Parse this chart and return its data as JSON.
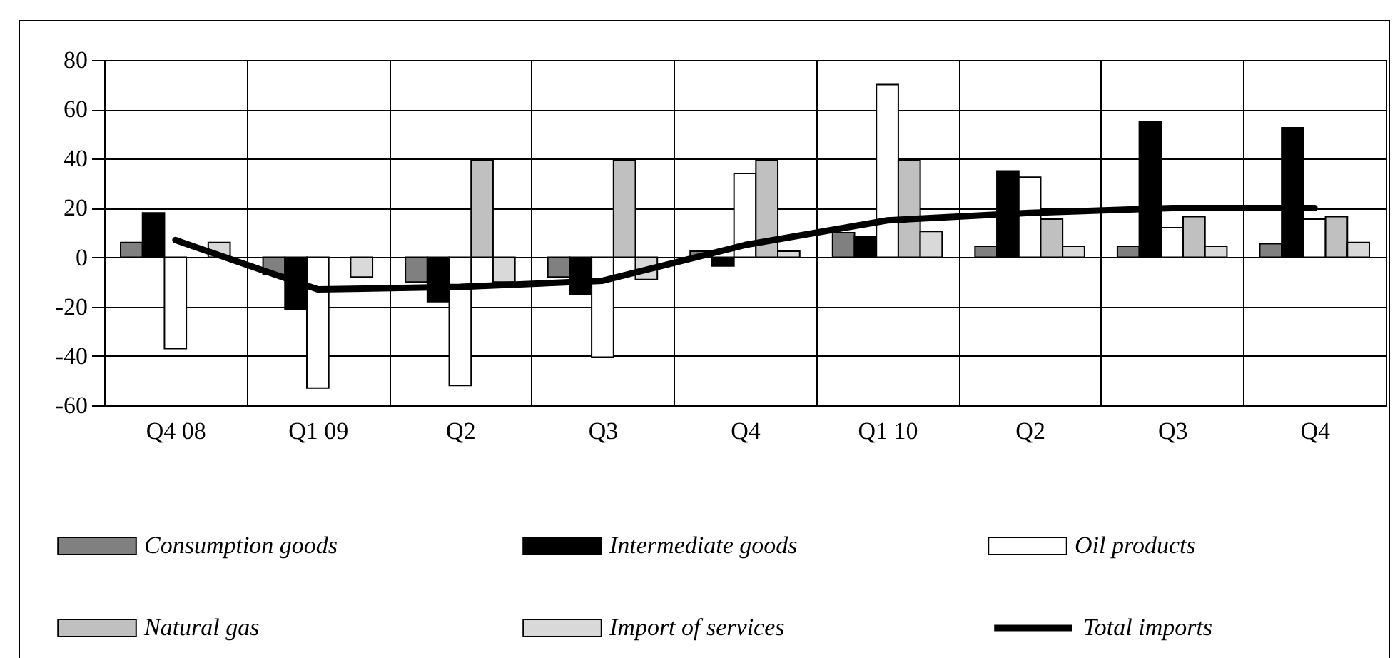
{
  "chart_data": {
    "type": "bar",
    "categories": [
      "Q4 08",
      "Q1 09",
      "Q2",
      "Q3",
      "Q4",
      "Q1 10",
      "Q2",
      "Q3",
      "Q4"
    ],
    "series": [
      {
        "name": "Consumption goods",
        "color": "#808080",
        "values": [
          6,
          -7,
          -10,
          -8,
          2.5,
          10,
          4.5,
          4.5,
          5.5
        ]
      },
      {
        "name": "Intermediate goods",
        "color": "#000000",
        "values": [
          18,
          -21,
          -18,
          -15,
          -3.5,
          8.5,
          35,
          55,
          52.5
        ]
      },
      {
        "name": "Oil products",
        "color": "#ffffff",
        "values": [
          -37,
          -53,
          -52,
          -40.5,
          34,
          70,
          32.5,
          12,
          15.5
        ]
      },
      {
        "name": "Natural gas",
        "color": "#c0c0c0",
        "values": [
          null,
          null,
          39.5,
          39.5,
          39.5,
          39.5,
          15.5,
          16.5,
          16.5
        ]
      },
      {
        "name": "Import of services",
        "color": "#d9d9d9",
        "values": [
          6,
          -8,
          -10,
          -9,
          2.5,
          10.5,
          4.5,
          4.5,
          6
        ]
      },
      {
        "name": "Total imports",
        "type": "line",
        "color": "#000000",
        "values": [
          7,
          -13,
          -12,
          -9.5,
          5,
          15,
          18,
          20,
          20
        ]
      }
    ],
    "ylim": [
      -60,
      80
    ],
    "yticks": [
      -60,
      -40,
      -20,
      0,
      20,
      40,
      60,
      80
    ],
    "grid": true,
    "legend": "bottom"
  }
}
